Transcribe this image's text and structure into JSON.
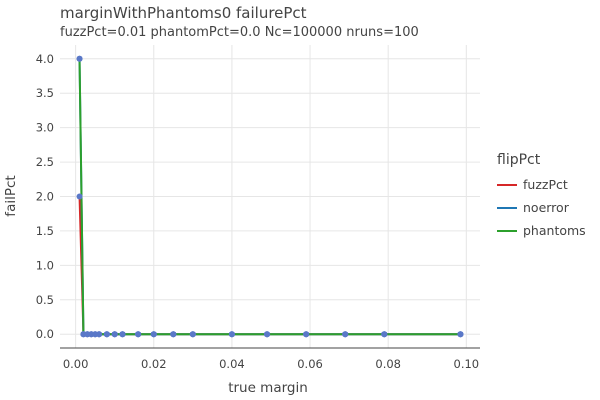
{
  "chart_data": {
    "type": "line",
    "title": "marginWithPhantoms0 failurePct",
    "subtitle": "fuzzPct=0.01 phantomPct=0.0 Nc=100000 nruns=100",
    "xlabel": "true margin",
    "ylabel": "failPct",
    "xlim": [
      -0.004,
      0.1035
    ],
    "ylim": [
      -0.2,
      4.2
    ],
    "xticks": [
      0.0,
      0.02,
      0.04,
      0.06,
      0.08,
      0.1
    ],
    "xtick_labels": [
      "0.00",
      "0.02",
      "0.04",
      "0.06",
      "0.08",
      "0.10"
    ],
    "yticks": [
      0.0,
      0.5,
      1.0,
      1.5,
      2.0,
      2.5,
      3.0,
      3.5,
      4.0
    ],
    "ytick_labels": [
      "0.0",
      "0.5",
      "1.0",
      "1.5",
      "2.0",
      "2.5",
      "3.0",
      "3.5",
      "4.0"
    ],
    "grid": true,
    "legend_title": "flipPct",
    "legend_position": "right",
    "x": [
      0.001,
      0.002,
      0.003,
      0.004,
      0.005,
      0.006,
      0.008,
      0.01,
      0.012,
      0.016,
      0.02,
      0.025,
      0.03,
      0.04,
      0.049,
      0.059,
      0.069,
      0.079,
      0.0985
    ],
    "series": [
      {
        "name": "fuzzPct",
        "color": "#d62728",
        "values": [
          2.0,
          0,
          0,
          0,
          0,
          0,
          0,
          0,
          0,
          0,
          0,
          0,
          0,
          0,
          0,
          0,
          0,
          0,
          0
        ]
      },
      {
        "name": "noerror",
        "color": "#1f77b4",
        "values": [
          4.0,
          0,
          0,
          0,
          0,
          0,
          0,
          0,
          0,
          0,
          0,
          0,
          0,
          0,
          0,
          0,
          0,
          0,
          0
        ]
      },
      {
        "name": "phantoms",
        "color": "#2ca02c",
        "values": [
          4.0,
          0,
          0,
          0,
          0,
          0,
          0,
          0,
          0,
          0,
          0,
          0,
          0,
          0,
          0,
          0,
          0,
          0,
          0
        ]
      }
    ],
    "marker_color": "#5a78c8"
  }
}
